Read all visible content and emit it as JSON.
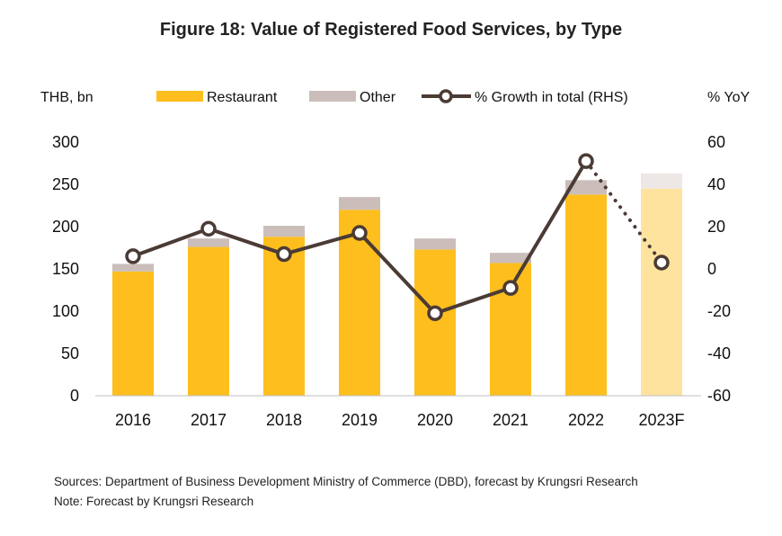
{
  "title": "Figure 18: Value of Registered Food Services, by Type",
  "colors": {
    "restaurant": "#FDBE1E",
    "other": "#CBBEBA",
    "restaurant_forecast": "#FEE39F",
    "other_forecast": "#EDE7E6",
    "growth_line": "#4B3B35"
  },
  "chart_data": {
    "type": "bar",
    "stacked": true,
    "categories": [
      "2016",
      "2017",
      "2018",
      "2019",
      "2020",
      "2021",
      "2022",
      "2023F"
    ],
    "forecast_categories": [
      "2023F"
    ],
    "series": [
      {
        "name": "Restaurant",
        "axis": "left",
        "values": [
          147,
          176,
          188,
          220,
          173,
          157,
          238,
          245
        ]
      },
      {
        "name": "Other",
        "axis": "left",
        "values": [
          9,
          10,
          13,
          15,
          13,
          12,
          17,
          18
        ]
      },
      {
        "name": "% Growth in total (RHS)",
        "type": "line",
        "axis": "right",
        "values": [
          6,
          19,
          7,
          17,
          -21,
          -9,
          51,
          3
        ],
        "dotted_from_index": 6
      }
    ],
    "y_left": {
      "unit_label": "THB, bn",
      "ylim": [
        0,
        300
      ],
      "ticks": [
        "0",
        "50",
        "100",
        "150",
        "200",
        "250",
        "300"
      ]
    },
    "y_right": {
      "unit_label": "% YoY",
      "ylim": [
        -60,
        60
      ],
      "ticks": [
        "-60",
        "-40",
        "-20",
        "0",
        "20",
        "40",
        "60"
      ]
    },
    "legend": [
      "Restaurant",
      "Other",
      "% Growth in total (RHS)"
    ],
    "legend_position": "top",
    "grid": false
  },
  "footer": {
    "sources": "Sources:  Department of Business Development Ministry of Commerce (DBD), forecast by Krungsri Research",
    "note": "Note: Forecast by Krungsri Research"
  }
}
